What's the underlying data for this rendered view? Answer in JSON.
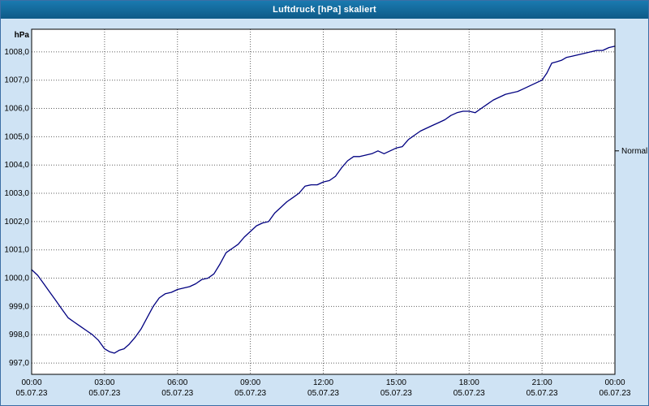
{
  "title": "Luftdruck [hPa] skaliert",
  "colors": {
    "window_bg": "#cfe3f4",
    "titlebar_top": "#1a7ab0",
    "titlebar_bottom": "#0e5a87",
    "window_border": "#3c6ea5",
    "plot_bg": "#ffffff",
    "plot_border": "#000000",
    "grid": "#606060",
    "line": "#000080",
    "tick_text": "#000000"
  },
  "chart_data": {
    "type": "line",
    "title": "Luftdruck [hPa] skaliert",
    "ylabel": "hPa",
    "xlabel": "",
    "grid": true,
    "xlim": [
      0,
      24
    ],
    "ylim": [
      996.6,
      1008.8
    ],
    "y_ticks": [
      {
        "value": 1008,
        "label": "1008,0"
      },
      {
        "value": 1007,
        "label": "1007,0"
      },
      {
        "value": 1006,
        "label": "1006,0"
      },
      {
        "value": 1005,
        "label": "1005,0"
      },
      {
        "value": 1004,
        "label": "1004,0"
      },
      {
        "value": 1003,
        "label": "1003,0"
      },
      {
        "value": 1002,
        "label": "1002,0"
      },
      {
        "value": 1001,
        "label": "1001,0"
      },
      {
        "value": 1000,
        "label": "1000,0"
      },
      {
        "value": 999,
        "label": "999,0"
      },
      {
        "value": 998,
        "label": "998,0"
      },
      {
        "value": 997,
        "label": "997,0"
      }
    ],
    "x_ticks": [
      {
        "hour": 0,
        "time": "00:00",
        "date": "05.07.23"
      },
      {
        "hour": 3,
        "time": "03:00",
        "date": "05.07.23"
      },
      {
        "hour": 6,
        "time": "06:00",
        "date": "05.07.23"
      },
      {
        "hour": 9,
        "time": "09:00",
        "date": "05.07.23"
      },
      {
        "hour": 12,
        "time": "12:00",
        "date": "05.07.23"
      },
      {
        "hour": 15,
        "time": "15:00",
        "date": "05.07.23"
      },
      {
        "hour": 18,
        "time": "18:00",
        "date": "05.07.23"
      },
      {
        "hour": 21,
        "time": "21:00",
        "date": "05.07.23"
      },
      {
        "hour": 24,
        "time": "00:00",
        "date": "06.07.23"
      }
    ],
    "annotations": [
      {
        "label": "Normal",
        "value": 1004.5,
        "side": "right"
      }
    ],
    "series": [
      {
        "name": "Luftdruck",
        "color": "#000080",
        "points": [
          [
            0,
            1000.3
          ],
          [
            0.25,
            1000.1
          ],
          [
            0.5,
            999.8
          ],
          [
            0.75,
            999.5
          ],
          [
            1,
            999.2
          ],
          [
            1.25,
            998.9
          ],
          [
            1.5,
            998.6
          ],
          [
            1.75,
            998.45
          ],
          [
            2,
            998.3
          ],
          [
            2.25,
            998.15
          ],
          [
            2.5,
            998.0
          ],
          [
            2.75,
            997.8
          ],
          [
            3,
            997.5
          ],
          [
            3.2,
            997.4
          ],
          [
            3.4,
            997.35
          ],
          [
            3.6,
            997.45
          ],
          [
            3.8,
            997.5
          ],
          [
            4,
            997.65
          ],
          [
            4.25,
            997.9
          ],
          [
            4.5,
            998.2
          ],
          [
            4.75,
            998.6
          ],
          [
            5,
            999.0
          ],
          [
            5.25,
            999.3
          ],
          [
            5.5,
            999.45
          ],
          [
            5.75,
            999.5
          ],
          [
            6,
            999.6
          ],
          [
            6.25,
            999.65
          ],
          [
            6.5,
            999.7
          ],
          [
            6.75,
            999.8
          ],
          [
            7,
            999.95
          ],
          [
            7.25,
            1000.0
          ],
          [
            7.5,
            1000.15
          ],
          [
            7.75,
            1000.5
          ],
          [
            8,
            1000.9
          ],
          [
            8.25,
            1001.05
          ],
          [
            8.5,
            1001.2
          ],
          [
            8.75,
            1001.45
          ],
          [
            9,
            1001.65
          ],
          [
            9.25,
            1001.85
          ],
          [
            9.5,
            1001.95
          ],
          [
            9.75,
            1002.0
          ],
          [
            10,
            1002.3
          ],
          [
            10.25,
            1002.5
          ],
          [
            10.5,
            1002.7
          ],
          [
            10.75,
            1002.85
          ],
          [
            11,
            1003.0
          ],
          [
            11.25,
            1003.25
          ],
          [
            11.5,
            1003.3
          ],
          [
            11.75,
            1003.3
          ],
          [
            12,
            1003.4
          ],
          [
            12.25,
            1003.45
          ],
          [
            12.5,
            1003.6
          ],
          [
            12.75,
            1003.9
          ],
          [
            13,
            1004.15
          ],
          [
            13.25,
            1004.3
          ],
          [
            13.5,
            1004.3
          ],
          [
            13.75,
            1004.35
          ],
          [
            14,
            1004.4
          ],
          [
            14.25,
            1004.5
          ],
          [
            14.5,
            1004.4
          ],
          [
            14.75,
            1004.5
          ],
          [
            15,
            1004.6
          ],
          [
            15.25,
            1004.65
          ],
          [
            15.5,
            1004.9
          ],
          [
            15.75,
            1005.05
          ],
          [
            16,
            1005.2
          ],
          [
            16.25,
            1005.3
          ],
          [
            16.5,
            1005.4
          ],
          [
            16.75,
            1005.5
          ],
          [
            17,
            1005.6
          ],
          [
            17.25,
            1005.75
          ],
          [
            17.5,
            1005.85
          ],
          [
            17.75,
            1005.9
          ],
          [
            18,
            1005.9
          ],
          [
            18.25,
            1005.85
          ],
          [
            18.5,
            1006.0
          ],
          [
            18.75,
            1006.15
          ],
          [
            19,
            1006.3
          ],
          [
            19.25,
            1006.4
          ],
          [
            19.5,
            1006.5
          ],
          [
            19.75,
            1006.55
          ],
          [
            20,
            1006.6
          ],
          [
            20.25,
            1006.7
          ],
          [
            20.5,
            1006.8
          ],
          [
            20.75,
            1006.9
          ],
          [
            21,
            1007.0
          ],
          [
            21.2,
            1007.25
          ],
          [
            21.4,
            1007.6
          ],
          [
            21.6,
            1007.65
          ],
          [
            21.8,
            1007.7
          ],
          [
            22,
            1007.8
          ],
          [
            22.25,
            1007.85
          ],
          [
            22.5,
            1007.9
          ],
          [
            22.75,
            1007.95
          ],
          [
            23,
            1008.0
          ],
          [
            23.25,
            1008.05
          ],
          [
            23.5,
            1008.05
          ],
          [
            23.75,
            1008.15
          ],
          [
            24,
            1008.2
          ]
        ]
      }
    ]
  }
}
